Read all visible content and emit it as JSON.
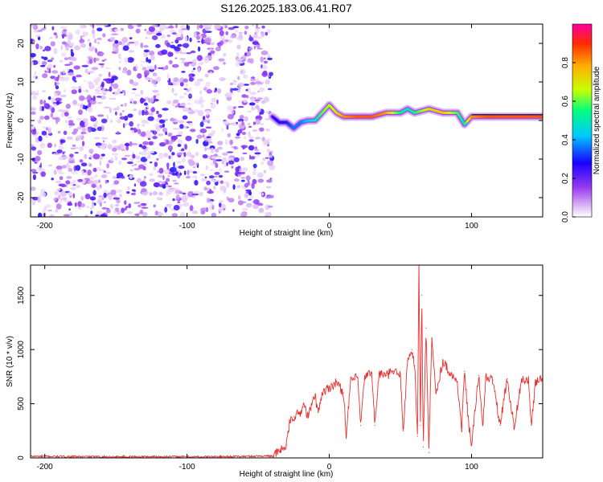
{
  "title": "S126.2025.183.06.41.R07",
  "chart_data": [
    {
      "type": "heatmap",
      "xlabel": "Height of straight line (km)",
      "ylabel": "Frequency (Hz)",
      "xlim": [
        -210,
        150
      ],
      "ylim": [
        -25,
        25
      ],
      "xticks": [
        -200,
        -100,
        0,
        100
      ],
      "yticks": [
        -20,
        -10,
        0,
        10,
        20
      ],
      "colorbar": {
        "label": "Normalized spectral amplitude",
        "range": [
          0,
          1
        ],
        "ticks": [
          0.0,
          0.2,
          0.4,
          0.6,
          0.8
        ],
        "tick_labels": [
          "0.0",
          "0.2",
          "0.4",
          "0.6",
          "0.8"
        ],
        "colormap": [
          "#ffffff",
          "#d9b3f5",
          "#9a3cf0",
          "#1a00ff",
          "#00c8ff",
          "#00ff7f",
          "#c8ff00",
          "#ffb000",
          "#ff2a00",
          "#ff00a0"
        ]
      },
      "noise_region_x": [
        -210,
        -40
      ],
      "ridge": {
        "x": [
          -40,
          -35,
          -30,
          -25,
          -20,
          -15,
          -10,
          -5,
          0,
          5,
          10,
          20,
          30,
          40,
          50,
          55,
          60,
          70,
          80,
          90,
          95,
          100,
          110,
          120,
          130,
          140,
          150
        ],
        "freq": [
          1.0,
          -0.5,
          -0.5,
          -2.0,
          -0.5,
          0.0,
          0.0,
          2.0,
          4.0,
          2.0,
          1.0,
          1.0,
          1.0,
          2.0,
          2.0,
          3.0,
          2.0,
          3.0,
          2.0,
          2.0,
          -1.0,
          1.0,
          1.0,
          1.0,
          1.0,
          1.0,
          1.0
        ],
        "amplitude": [
          0.3,
          0.35,
          0.35,
          0.4,
          0.4,
          0.45,
          0.5,
          0.6,
          0.65,
          0.7,
          0.8,
          0.85,
          0.85,
          0.8,
          0.55,
          0.5,
          0.55,
          0.7,
          0.75,
          0.6,
          0.5,
          0.8,
          0.85,
          0.85,
          0.85,
          0.85,
          0.85
        ]
      }
    },
    {
      "type": "line",
      "xlabel": "Height of straight line (km)",
      "ylabel": "SNR (10 * v/v)",
      "xlim": [
        -210,
        150
      ],
      "ylim": [
        0,
        1780
      ],
      "xticks": [
        -200,
        -100,
        0,
        100
      ],
      "yticks": [
        0,
        500,
        1000,
        1500
      ],
      "color": "#e83030",
      "x": [
        -210,
        -180,
        -150,
        -120,
        -90,
        -60,
        -40,
        -35,
        -30,
        -28,
        -25,
        -20,
        -18,
        -15,
        -10,
        -8,
        -5,
        0,
        5,
        10,
        12,
        15,
        20,
        22,
        25,
        30,
        32,
        35,
        40,
        45,
        50,
        52,
        55,
        58,
        60,
        62,
        63,
        64,
        65,
        66,
        68,
        70,
        72,
        75,
        80,
        85,
        90,
        93,
        95,
        98,
        100,
        105,
        108,
        110,
        115,
        120,
        125,
        130,
        135,
        140,
        142,
        145,
        150
      ],
      "y": [
        15,
        12,
        10,
        12,
        10,
        14,
        20,
        60,
        120,
        320,
        380,
        420,
        500,
        380,
        580,
        420,
        600,
        650,
        700,
        600,
        200,
        720,
        740,
        300,
        760,
        780,
        300,
        780,
        760,
        800,
        760,
        250,
        900,
        1000,
        850,
        200,
        1780,
        300,
        1500,
        100,
        1200,
        50,
        1100,
        600,
        900,
        780,
        700,
        250,
        800,
        300,
        120,
        760,
        300,
        740,
        720,
        300,
        730,
        280,
        720,
        710,
        300,
        700,
        730
      ]
    }
  ]
}
